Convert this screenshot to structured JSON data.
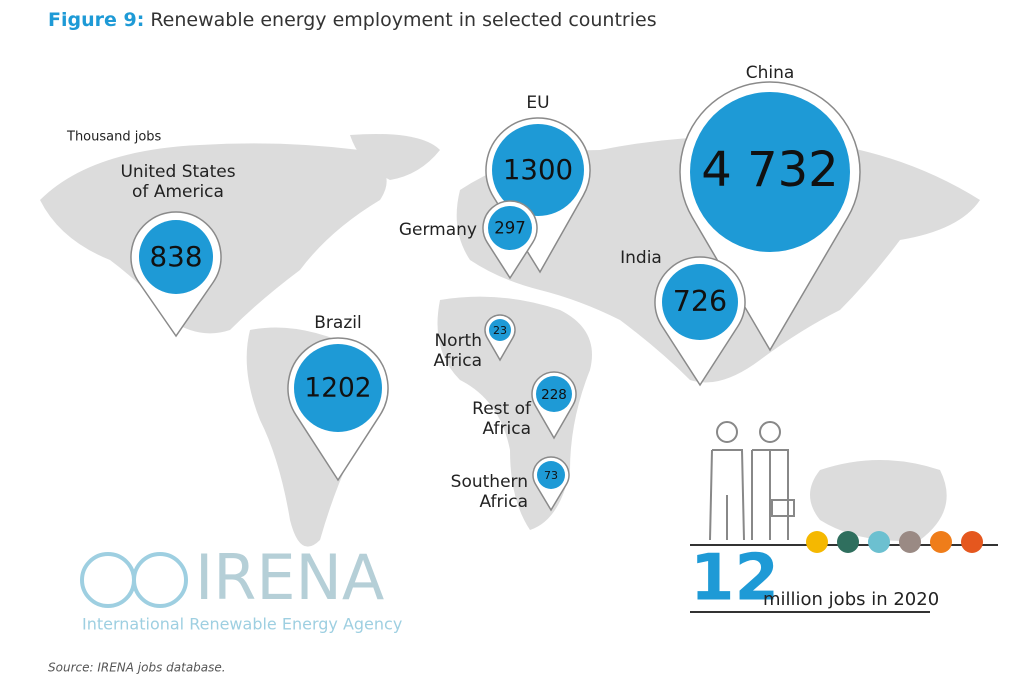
{
  "header": {
    "figure": "Figure 9:",
    "title": "Renewable energy employment in selected countries"
  },
  "unit": "Thousand jobs",
  "pins": [
    {
      "label": [
        "United States",
        "of America"
      ],
      "value": "838"
    },
    {
      "label": [
        "Brazil"
      ],
      "value": "1202"
    },
    {
      "label": [
        "EU"
      ],
      "value": "1300"
    },
    {
      "label": [
        "Germany"
      ],
      "value": "297"
    },
    {
      "label": [
        "China"
      ],
      "value": "4 732"
    },
    {
      "label": [
        "India"
      ],
      "value": "726"
    },
    {
      "label": [
        "North",
        "Africa"
      ],
      "value": "23"
    },
    {
      "label": [
        "Rest of",
        "Africa"
      ],
      "value": "228"
    },
    {
      "label": [
        "Southern",
        "Africa"
      ],
      "value": "73"
    }
  ],
  "total": {
    "number": "12",
    "text": "million jobs in 2020"
  },
  "logo": {
    "name": "IRENA",
    "full_name": "International Renewable Energy Agency"
  },
  "source": "Source: IRENA jobs database."
}
